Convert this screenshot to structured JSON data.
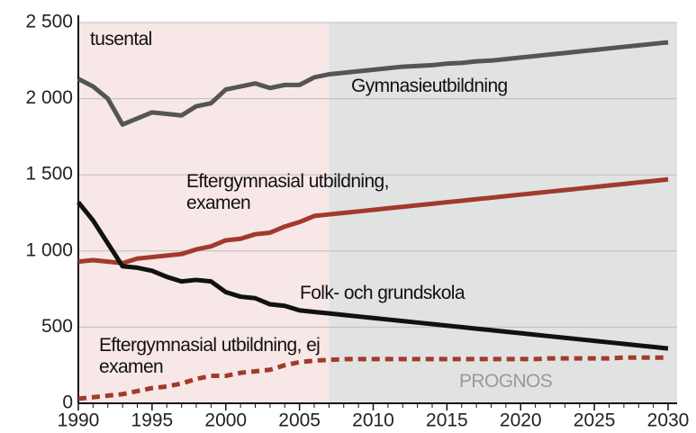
{
  "chart_data": {
    "type": "line",
    "annotations": [
      "tusental",
      "PROGNOS"
    ],
    "x": [
      1990,
      1991,
      1992,
      1993,
      1994,
      1995,
      1996,
      1997,
      1998,
      1999,
      2000,
      2001,
      2002,
      2003,
      2004,
      2005,
      2006,
      2007,
      2008,
      2009,
      2010,
      2011,
      2012,
      2013,
      2014,
      2015,
      2016,
      2017,
      2018,
      2019,
      2020,
      2021,
      2022,
      2023,
      2024,
      2025,
      2026,
      2027,
      2028,
      2029,
      2030
    ],
    "xlim": [
      1990,
      2030
    ],
    "xticks": [
      1990,
      1995,
      2000,
      2005,
      2010,
      2015,
      2020,
      2025,
      2030
    ],
    "ylim": [
      0,
      2500
    ],
    "yticks": [
      0,
      500,
      {
        "value": 1000,
        "label": "1 000"
      },
      {
        "value": 1500,
        "label": "1 500"
      },
      {
        "value": 2000,
        "label": "2 000"
      },
      {
        "value": 2500,
        "label": "2 500"
      }
    ],
    "grid": true,
    "prognosis_start": 2007,
    "series": [
      {
        "name": "Gymnasieutbildning",
        "color": "#555555",
        "dash": false,
        "values": [
          2130,
          2080,
          2000,
          1830,
          1870,
          1910,
          1900,
          1890,
          1950,
          1970,
          2060,
          2080,
          2100,
          2070,
          2090,
          2090,
          2140,
          2160,
          2170,
          2180,
          2190,
          2200,
          2210,
          2215,
          2220,
          2230,
          2235,
          2245,
          2250,
          2260,
          2270,
          2280,
          2290,
          2300,
          2310,
          2320,
          2330,
          2340,
          2350,
          2360,
          2370
        ]
      },
      {
        "name": "Eftergymnasial utbildning, examen",
        "color": "#a23a2c",
        "dash": false,
        "values": [
          930,
          940,
          930,
          920,
          950,
          960,
          970,
          980,
          1010,
          1030,
          1070,
          1080,
          1110,
          1120,
          1160,
          1190,
          1230,
          1240,
          1250,
          1260,
          1270,
          1280,
          1290,
          1300,
          1310,
          1320,
          1330,
          1340,
          1350,
          1360,
          1370,
          1380,
          1390,
          1400,
          1410,
          1420,
          1430,
          1440,
          1450,
          1460,
          1470
        ]
      },
      {
        "name": "Folk- och grundskola",
        "color": "#111111",
        "dash": false,
        "values": [
          1320,
          1200,
          1050,
          900,
          890,
          870,
          830,
          800,
          810,
          800,
          730,
          700,
          690,
          650,
          640,
          610,
          600,
          590,
          580,
          570,
          560,
          550,
          540,
          530,
          520,
          510,
          500,
          490,
          480,
          470,
          460,
          450,
          440,
          430,
          420,
          410,
          400,
          390,
          380,
          370,
          360
        ]
      },
      {
        "name": "Eftergymnasial utbildning, ej examen",
        "color": "#a23a2c",
        "dash": true,
        "values": [
          30,
          40,
          50,
          60,
          80,
          100,
          110,
          130,
          160,
          180,
          180,
          200,
          210,
          220,
          250,
          270,
          280,
          285,
          290,
          290,
          290,
          290,
          290,
          290,
          290,
          290,
          290,
          290,
          290,
          290,
          290,
          290,
          295,
          295,
          295,
          295,
          295,
          300,
          300,
          300,
          300
        ]
      }
    ]
  }
}
